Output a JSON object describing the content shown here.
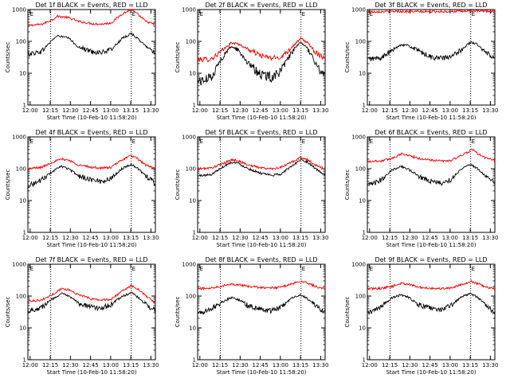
{
  "chart_data": [
    {
      "type": "line",
      "title": "Det 1f BLACK = Events, RED = LLD",
      "xlabel": "Start Time (10-Feb-10 11:58:20)",
      "ylabel": "Counts/sec",
      "x_ticks": [
        "12:00",
        "12:15",
        "12:30",
        "12:45",
        "13:00",
        "13:15",
        "13:30"
      ],
      "y_ticks": [
        "1",
        "10",
        "100",
        "1000"
      ],
      "ylim": [
        1,
        1000
      ],
      "y_scale": "log",
      "x_range_minutes": [
        0,
        95
      ],
      "vlines_minutes": [
        17,
        77
      ],
      "markers": [
        {
          "label": "E",
          "x_minutes": 1
        },
        {
          "label": "E",
          "x_minutes": 77
        }
      ],
      "series": [
        {
          "color": "#ff0000",
          "x": [
            0,
            10,
            18,
            22,
            30,
            38,
            48,
            55,
            62,
            70,
            77,
            82,
            88,
            95
          ],
          "values": [
            320,
            340,
            480,
            620,
            560,
            420,
            360,
            350,
            380,
            720,
            1000,
            700,
            420,
            340
          ]
        },
        {
          "color": "#000000",
          "x": [
            0,
            5,
            10,
            18,
            22,
            30,
            38,
            48,
            55,
            62,
            70,
            77,
            82,
            88,
            95
          ],
          "values": [
            40,
            44,
            48,
            110,
            150,
            130,
            65,
            48,
            45,
            55,
            120,
            180,
            120,
            70,
            45
          ]
        }
      ]
    },
    {
      "type": "line",
      "title": "Det 2f BLACK = Events, RED = LLD",
      "xlabel": "Start Time (10-Feb-10 11:58:20)",
      "ylabel": "Counts/sec",
      "x_ticks": [
        "12:00",
        "12:15",
        "12:30",
        "12:45",
        "13:00",
        "13:15",
        "13:30"
      ],
      "y_ticks": [
        "1",
        "10",
        "100",
        "1000"
      ],
      "ylim": [
        1,
        1000
      ],
      "y_scale": "log",
      "x_range_minutes": [
        0,
        95
      ],
      "vlines_minutes": [
        17,
        77
      ],
      "markers": [
        {
          "label": "E",
          "x_minutes": 1
        },
        {
          "label": "E",
          "x_minutes": 77
        }
      ],
      "series": [
        {
          "color": "#ff0000",
          "x": [
            0,
            10,
            18,
            25,
            30,
            38,
            48,
            55,
            62,
            70,
            77,
            82,
            88,
            95
          ],
          "values": [
            27,
            28,
            50,
            90,
            85,
            55,
            35,
            30,
            32,
            65,
            125,
            90,
            45,
            30
          ]
        },
        {
          "color": "#000000",
          "x": [
            0,
            5,
            10,
            18,
            25,
            30,
            38,
            48,
            55,
            62,
            70,
            77,
            82,
            88,
            95
          ],
          "values": [
            6,
            6,
            8,
            30,
            70,
            55,
            20,
            9,
            8,
            12,
            45,
            95,
            60,
            20,
            8
          ]
        }
      ]
    },
    {
      "type": "line",
      "title": "Det 3f BLACK = Events, RED = LLD",
      "xlabel": "Start Time (10-Feb-10 11:58:20)",
      "ylabel": "Counts/sec",
      "x_ticks": [
        "12:00",
        "12:15",
        "12:30",
        "12:45",
        "13:00",
        "13:15",
        "13:30"
      ],
      "y_ticks": [
        "1",
        "10",
        "100",
        "1000"
      ],
      "ylim": [
        1,
        1000
      ],
      "y_scale": "log",
      "x_range_minutes": [
        0,
        95
      ],
      "vlines_minutes": [
        17,
        77
      ],
      "markers": [
        {
          "label": "E",
          "x_minutes": 1
        },
        {
          "label": "E",
          "x_minutes": 77
        }
      ],
      "series": [
        {
          "color": "#ff0000",
          "x": [
            0,
            20,
            40,
            60,
            80,
            95
          ],
          "values": [
            850,
            880,
            860,
            870,
            900,
            870
          ]
        },
        {
          "color": "#000000",
          "x": [
            0,
            10,
            18,
            25,
            30,
            38,
            48,
            55,
            62,
            70,
            77,
            82,
            88,
            95
          ],
          "values": [
            28,
            30,
            50,
            80,
            75,
            50,
            32,
            30,
            32,
            55,
            95,
            80,
            45,
            30
          ]
        }
      ]
    },
    {
      "type": "line",
      "title": "Det 4f BLACK = Events, RED = LLD",
      "xlabel": "Start Time (10-Feb-10 11:58:20)",
      "ylabel": "Counts/sec",
      "x_ticks": [
        "12:00",
        "12:15",
        "12:30",
        "12:45",
        "13:00",
        "13:15",
        "13:30"
      ],
      "y_ticks": [
        "1",
        "10",
        "100",
        "1000"
      ],
      "ylim": [
        1,
        1000
      ],
      "y_scale": "log",
      "x_range_minutes": [
        0,
        95
      ],
      "vlines_minutes": [
        17,
        77
      ],
      "markers": [
        {
          "label": "E",
          "x_minutes": 1
        },
        {
          "label": "E",
          "x_minutes": 77
        }
      ],
      "series": [
        {
          "color": "#ff0000",
          "x": [
            0,
            10,
            18,
            25,
            30,
            38,
            48,
            55,
            62,
            70,
            77,
            82,
            88,
            95
          ],
          "values": [
            100,
            110,
            160,
            200,
            190,
            130,
            110,
            105,
            110,
            190,
            260,
            200,
            130,
            100
          ]
        },
        {
          "color": "#000000",
          "x": [
            0,
            5,
            10,
            18,
            25,
            30,
            38,
            48,
            55,
            62,
            70,
            77,
            82,
            88,
            95
          ],
          "values": [
            30,
            35,
            45,
            80,
            120,
            100,
            60,
            45,
            40,
            50,
            100,
            140,
            100,
            60,
            35
          ]
        }
      ]
    },
    {
      "type": "line",
      "title": "Det 5f BLACK = Events, RED = LLD",
      "xlabel": "Start Time (10-Feb-10 11:58:20)",
      "ylabel": "Counts/sec",
      "x_ticks": [
        "12:00",
        "12:15",
        "12:30",
        "12:45",
        "13:00",
        "13:15",
        "13:30"
      ],
      "y_ticks": [
        "1",
        "10",
        "100",
        "1000"
      ],
      "ylim": [
        1,
        1000
      ],
      "y_scale": "log",
      "x_range_minutes": [
        0,
        95
      ],
      "vlines_minutes": [
        17,
        77
      ],
      "markers": [
        {
          "label": "E",
          "x_minutes": 1
        },
        {
          "label": "E",
          "x_minutes": 77
        }
      ],
      "series": [
        {
          "color": "#ff0000",
          "x": [
            0,
            10,
            18,
            25,
            30,
            38,
            48,
            55,
            62,
            70,
            77,
            82,
            88,
            95
          ],
          "values": [
            100,
            105,
            140,
            190,
            180,
            130,
            105,
            100,
            110,
            160,
            230,
            190,
            130,
            100
          ]
        },
        {
          "color": "#000000",
          "x": [
            0,
            10,
            18,
            25,
            30,
            38,
            48,
            55,
            62,
            70,
            77,
            82,
            88,
            95
          ],
          "values": [
            60,
            65,
            110,
            160,
            150,
            100,
            70,
            62,
            68,
            120,
            200,
            160,
            100,
            60
          ]
        }
      ]
    },
    {
      "type": "line",
      "title": "Det 6f BLACK = Events, RED = LLD",
      "xlabel": "Start Time (10-Feb-10 11:58:20)",
      "ylabel": "Counts/sec",
      "x_ticks": [
        "12:00",
        "12:15",
        "12:30",
        "12:45",
        "13:00",
        "13:15",
        "13:30"
      ],
      "y_ticks": [
        "1",
        "10",
        "100",
        "1000"
      ],
      "ylim": [
        1,
        1000
      ],
      "y_scale": "log",
      "x_range_minutes": [
        0,
        95
      ],
      "vlines_minutes": [
        17,
        77
      ],
      "markers": [
        {
          "label": "E",
          "x_minutes": 1
        },
        {
          "label": "E",
          "x_minutes": 77
        }
      ],
      "series": [
        {
          "color": "#ff0000",
          "x": [
            0,
            10,
            18,
            25,
            30,
            38,
            48,
            55,
            62,
            70,
            75,
            78,
            82,
            88,
            95
          ],
          "values": [
            170,
            175,
            210,
            290,
            270,
            210,
            185,
            175,
            180,
            260,
            330,
            420,
            300,
            220,
            180
          ]
        },
        {
          "color": "#000000",
          "x": [
            0,
            5,
            10,
            18,
            25,
            30,
            38,
            48,
            55,
            62,
            70,
            77,
            82,
            88,
            95
          ],
          "values": [
            30,
            35,
            45,
            90,
            120,
            100,
            60,
            40,
            35,
            45,
            100,
            140,
            100,
            60,
            35
          ]
        }
      ]
    },
    {
      "type": "line",
      "title": "Det 7f BLACK = Events, RED = LLD",
      "xlabel": "Start Time (10-Feb-10 11:58:20)",
      "ylabel": "Counts/sec",
      "x_ticks": [
        "12:00",
        "12:15",
        "12:30",
        "12:45",
        "13:00",
        "13:15",
        "13:30"
      ],
      "y_ticks": [
        "1",
        "10",
        "100",
        "1000"
      ],
      "ylim": [
        1,
        1000
      ],
      "y_scale": "log",
      "x_range_minutes": [
        0,
        95
      ],
      "vlines_minutes": [
        17,
        77
      ],
      "markers": [
        {
          "label": "E",
          "x_minutes": 1
        },
        {
          "label": "E",
          "x_minutes": 77
        }
      ],
      "series": [
        {
          "color": "#ff0000",
          "x": [
            0,
            10,
            18,
            25,
            30,
            38,
            48,
            55,
            62,
            70,
            77,
            82,
            88,
            95
          ],
          "values": [
            70,
            75,
            110,
            170,
            160,
            110,
            80,
            75,
            80,
            140,
            210,
            170,
            100,
            60
          ]
        },
        {
          "color": "#000000",
          "x": [
            0,
            5,
            10,
            18,
            25,
            30,
            38,
            48,
            55,
            62,
            70,
            77,
            82,
            88,
            95
          ],
          "values": [
            35,
            38,
            45,
            80,
            120,
            100,
            60,
            45,
            42,
            55,
            95,
            130,
            90,
            55,
            35
          ]
        }
      ]
    },
    {
      "type": "line",
      "title": "Det 8f BLACK = Events, RED = LLD",
      "xlabel": "Start Time (10-Feb-10 11:58:20)",
      "ylabel": "Counts/sec",
      "x_ticks": [
        "12:00",
        "12:15",
        "12:30",
        "12:45",
        "13:00",
        "13:15",
        "13:30"
      ],
      "y_ticks": [
        "1",
        "10",
        "100",
        "1000"
      ],
      "ylim": [
        1,
        1000
      ],
      "y_scale": "log",
      "x_range_minutes": [
        0,
        95
      ],
      "vlines_minutes": [
        17,
        77
      ],
      "markers": [
        {
          "label": "E",
          "x_minutes": 1
        },
        {
          "label": "E",
          "x_minutes": 77
        }
      ],
      "series": [
        {
          "color": "#ff0000",
          "x": [
            0,
            10,
            18,
            25,
            30,
            38,
            48,
            55,
            62,
            70,
            77,
            82,
            88,
            95
          ],
          "values": [
            170,
            180,
            210,
            240,
            230,
            200,
            185,
            180,
            190,
            240,
            300,
            260,
            200,
            170
          ]
        },
        {
          "color": "#000000",
          "x": [
            0,
            5,
            10,
            18,
            25,
            30,
            38,
            48,
            55,
            62,
            70,
            77,
            82,
            88,
            95
          ],
          "values": [
            30,
            32,
            40,
            65,
            90,
            80,
            50,
            38,
            35,
            45,
            85,
            110,
            80,
            50,
            30
          ]
        }
      ]
    },
    {
      "type": "line",
      "title": "Det 9f BLACK = Events, RED = LLD",
      "xlabel": "Start Time (10-Feb-10 11:58:20)",
      "ylabel": "Counts/sec",
      "x_ticks": [
        "12:00",
        "12:15",
        "12:30",
        "12:45",
        "13:00",
        "13:15",
        "13:30"
      ],
      "y_ticks": [
        "1",
        "10",
        "100",
        "1000"
      ],
      "ylim": [
        1,
        1000
      ],
      "y_scale": "log",
      "x_range_minutes": [
        0,
        95
      ],
      "vlines_minutes": [
        17,
        77
      ],
      "markers": [
        {
          "label": "E",
          "x_minutes": 1
        },
        {
          "label": "E",
          "x_minutes": 77
        }
      ],
      "series": [
        {
          "color": "#ff0000",
          "x": [
            0,
            10,
            18,
            25,
            30,
            38,
            48,
            55,
            62,
            70,
            77,
            82,
            88,
            95
          ],
          "values": [
            170,
            175,
            200,
            250,
            240,
            190,
            175,
            172,
            180,
            230,
            290,
            250,
            190,
            170
          ]
        },
        {
          "color": "#000000",
          "x": [
            0,
            5,
            10,
            18,
            25,
            30,
            38,
            48,
            55,
            62,
            70,
            77,
            82,
            88,
            95
          ],
          "values": [
            30,
            35,
            45,
            85,
            110,
            95,
            55,
            40,
            38,
            50,
            95,
            120,
            90,
            55,
            30
          ]
        }
      ]
    }
  ]
}
